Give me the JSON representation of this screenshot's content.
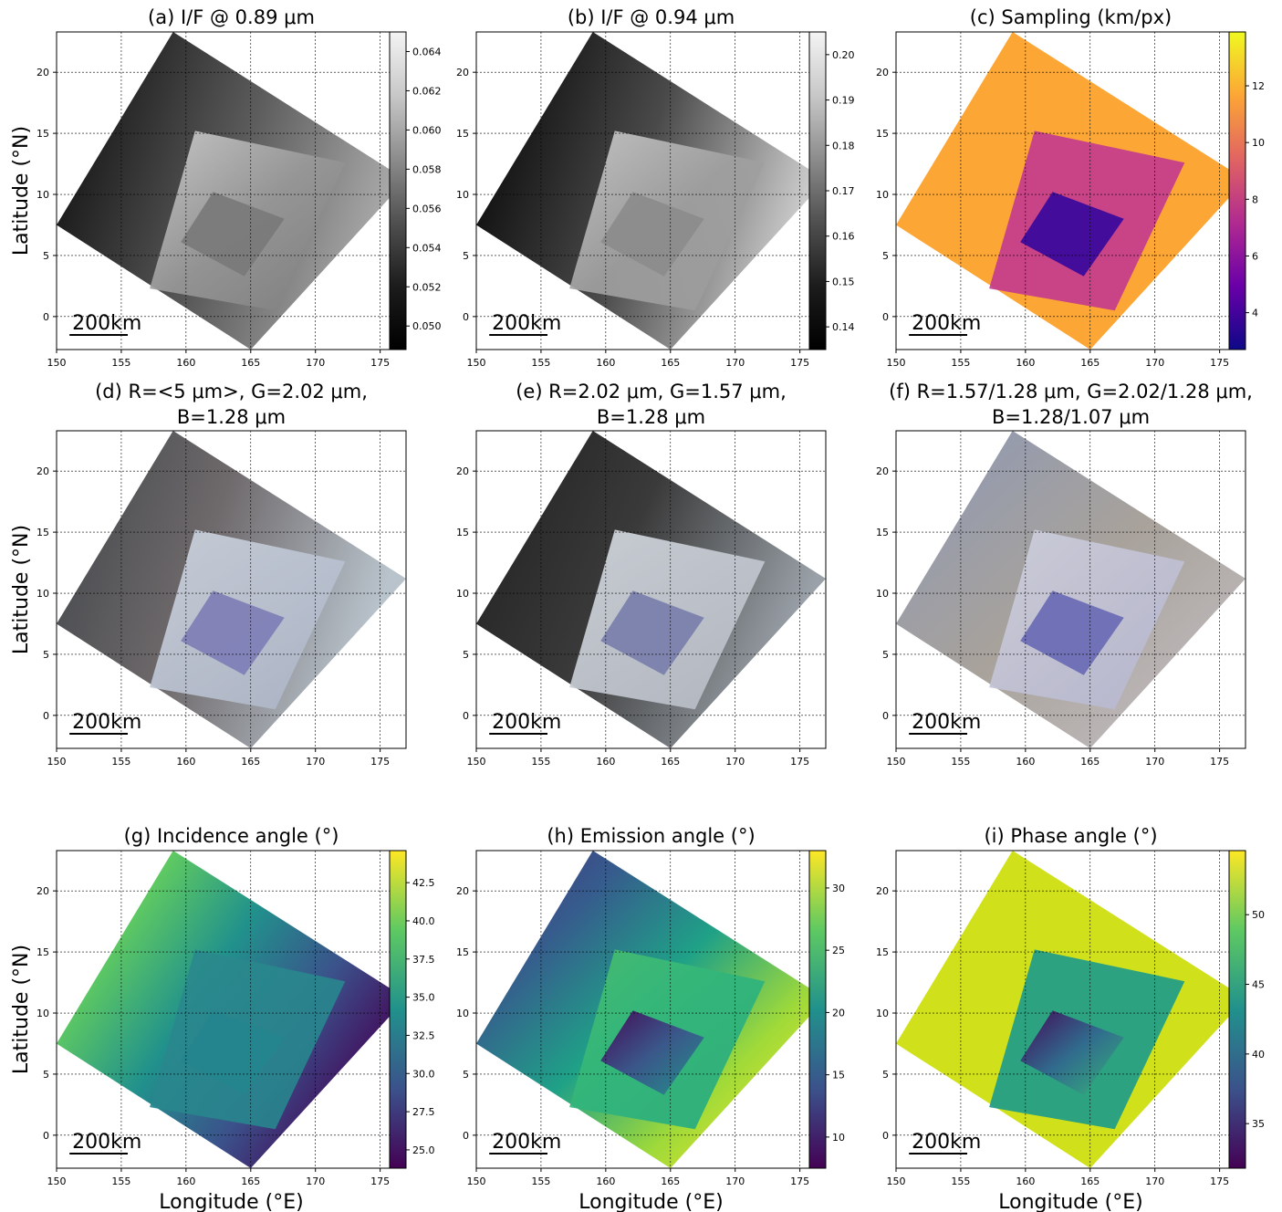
{
  "figure": {
    "ylabel": "Latitude (°N)",
    "xlabel": "Longitude (°E)",
    "scalebar_label": "200km"
  },
  "chart_data": [
    {
      "id": "a",
      "type": "heatmap",
      "title_lines": [
        "(a) I/F @ 0.89 μm"
      ],
      "colormap": "gray",
      "colorbar": {
        "range": [
          0.0488,
          0.065
        ],
        "ticks": [
          "0.050",
          "0.052",
          "0.054",
          "0.056",
          "0.058",
          "0.060",
          "0.062",
          "0.064"
        ],
        "values": [
          0.05,
          0.052,
          0.054,
          0.056,
          0.058,
          0.06,
          0.062,
          0.064
        ]
      },
      "xlim": [
        150,
        177
      ],
      "ylim": [
        -2.7,
        23.3
      ],
      "xticks": [
        "150",
        "155",
        "160",
        "165",
        "170",
        "175"
      ],
      "yticks": [
        "0",
        "5",
        "10",
        "15",
        "20"
      ],
      "grid": true
    },
    {
      "id": "b",
      "type": "heatmap",
      "title_lines": [
        "(b) I/F @ 0.94 μm"
      ],
      "colormap": "gray",
      "colorbar": {
        "range": [
          0.135,
          0.205
        ],
        "ticks": [
          "0.14",
          "0.15",
          "0.16",
          "0.17",
          "0.18",
          "0.19",
          "0.20"
        ],
        "values": [
          0.14,
          0.15,
          0.16,
          0.17,
          0.18,
          0.19,
          0.2
        ]
      },
      "xlim": [
        150,
        177
      ],
      "ylim": [
        -2.7,
        23.3
      ],
      "xticks": [
        "150",
        "155",
        "160",
        "165",
        "170",
        "175"
      ],
      "yticks": [
        "0",
        "5",
        "10",
        "15",
        "20"
      ],
      "grid": true
    },
    {
      "id": "c",
      "type": "heatmap",
      "title_lines": [
        "(c) Sampling (km/px)"
      ],
      "colormap": "plasma",
      "colorbar": {
        "range": [
          2.7,
          13.9
        ],
        "ticks": [
          "4",
          "6",
          "8",
          "10",
          "12"
        ],
        "values": [
          4,
          6,
          8,
          10,
          12
        ]
      },
      "xlim": [
        150,
        177
      ],
      "ylim": [
        -2.7,
        23.3
      ],
      "xticks": [
        "150",
        "155",
        "160",
        "165",
        "170",
        "175"
      ],
      "yticks": [
        "0",
        "5",
        "10",
        "15",
        "20"
      ],
      "grid": true
    },
    {
      "id": "d",
      "type": "heatmap",
      "title_lines": [
        "(d) R=<5 μm>, G=2.02 μm,",
        "B=1.28 μm"
      ],
      "colormap": "rgb-composite",
      "xlim": [
        150,
        177
      ],
      "ylim": [
        -2.7,
        23.3
      ],
      "xticks": [
        "150",
        "155",
        "160",
        "165",
        "170",
        "175"
      ],
      "yticks": [
        "0",
        "5",
        "10",
        "15",
        "20"
      ],
      "grid": true
    },
    {
      "id": "e",
      "type": "heatmap",
      "title_lines": [
        "(e) R=2.02 μm, G=1.57 μm,",
        "B=1.28 μm"
      ],
      "colormap": "rgb-composite",
      "xlim": [
        150,
        177
      ],
      "ylim": [
        -2.7,
        23.3
      ],
      "xticks": [
        "150",
        "155",
        "160",
        "165",
        "170",
        "175"
      ],
      "yticks": [
        "0",
        "5",
        "10",
        "15",
        "20"
      ],
      "grid": true
    },
    {
      "id": "f",
      "type": "heatmap",
      "title_lines": [
        "(f) R=1.57/1.28 μm, G=2.02/1.28 μm,",
        "B=1.28/1.07 μm"
      ],
      "colormap": "rgb-composite",
      "xlim": [
        150,
        177
      ],
      "ylim": [
        -2.7,
        23.3
      ],
      "xticks": [
        "150",
        "155",
        "160",
        "165",
        "170",
        "175"
      ],
      "yticks": [
        "0",
        "5",
        "10",
        "15",
        "20"
      ],
      "grid": true
    },
    {
      "id": "g",
      "type": "heatmap",
      "title_lines": [
        "(g) Incidence angle (°)"
      ],
      "colormap": "viridis",
      "colorbar": {
        "range": [
          23.8,
          44.6
        ],
        "ticks": [
          "25.0",
          "27.5",
          "30.0",
          "32.5",
          "35.0",
          "37.5",
          "40.0",
          "42.5"
        ],
        "values": [
          25.0,
          27.5,
          30.0,
          32.5,
          35.0,
          37.5,
          40.0,
          42.5
        ]
      },
      "xlim": [
        150,
        177
      ],
      "ylim": [
        -2.7,
        23.3
      ],
      "xticks": [
        "150",
        "155",
        "160",
        "165",
        "170",
        "175"
      ],
      "yticks": [
        "0",
        "5",
        "10",
        "15",
        "20"
      ],
      "grid": true
    },
    {
      "id": "h",
      "type": "heatmap",
      "title_lines": [
        "(h) Emission angle (°)"
      ],
      "colormap": "viridis",
      "colorbar": {
        "range": [
          7.5,
          33.0
        ],
        "ticks": [
          "10",
          "15",
          "20",
          "25",
          "30"
        ],
        "values": [
          10,
          15,
          20,
          25,
          30
        ]
      },
      "xlim": [
        150,
        177
      ],
      "ylim": [
        -2.7,
        23.3
      ],
      "xticks": [
        "150",
        "155",
        "160",
        "165",
        "170",
        "175"
      ],
      "yticks": [
        "0",
        "5",
        "10",
        "15",
        "20"
      ],
      "grid": true
    },
    {
      "id": "i",
      "type": "heatmap",
      "title_lines": [
        "(i) Phase angle (°)"
      ],
      "colormap": "viridis",
      "colorbar": {
        "range": [
          31.8,
          54.6
        ],
        "ticks": [
          "35",
          "40",
          "45",
          "50"
        ],
        "values": [
          35,
          40,
          45,
          50
        ]
      },
      "xlim": [
        150,
        177
      ],
      "ylim": [
        -2.7,
        23.3
      ],
      "xticks": [
        "150",
        "155",
        "160",
        "165",
        "170",
        "175"
      ],
      "yticks": [
        "0",
        "5",
        "10",
        "15",
        "20"
      ],
      "grid": true
    }
  ]
}
